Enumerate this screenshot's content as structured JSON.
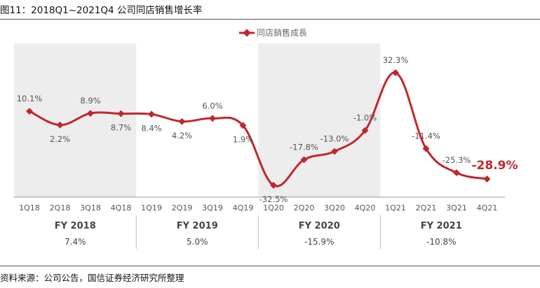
{
  "figure": {
    "title": "图11：2018Q1~2021Q4 公司同店销售增长率",
    "source": "资料来源：公司公告，国信证券经济研究所整理"
  },
  "colors": {
    "line": "#c0272d",
    "highlight_label": "#c0272d",
    "shade": "#ededed",
    "axis": "#999999",
    "text": "#555555",
    "fy_text": "#444444"
  },
  "chart_data": {
    "type": "line",
    "categories": [
      "1Q18",
      "2Q18",
      "3Q18",
      "4Q18",
      "1Q19",
      "2Q19",
      "3Q19",
      "4Q19",
      "1Q20",
      "2Q20",
      "3Q20",
      "4Q20",
      "1Q21",
      "2Q21",
      "3Q21",
      "4Q21"
    ],
    "series": [
      {
        "name": "同店銷售成長",
        "values": [
          10.1,
          2.2,
          8.9,
          8.7,
          8.4,
          4.2,
          6.0,
          1.9,
          -32.5,
          -17.8,
          -13.0,
          -1.0,
          32.3,
          -11.4,
          -25.3,
          -28.9
        ],
        "labels": [
          "10.1%",
          "2.2%",
          "8.9%",
          "8.7%",
          "8.4%",
          "4.2%",
          "6.0%",
          "1.9%",
          "-32.5%",
          "-17.8%",
          "-13.0%",
          "-1.0%",
          "32.3%",
          "-11.4%",
          "-25.3%",
          "-28.9%"
        ]
      }
    ],
    "legend_position": "top-center",
    "grid": false,
    "fiscal_years": [
      {
        "label": "FY 2018",
        "value": "7.4%"
      },
      {
        "label": "FY 2019",
        "value": "5.0%"
      },
      {
        "label": "FY 2020",
        "value": "-15.9%"
      },
      {
        "label": "FY 2021",
        "value": "-10.8%"
      }
    ],
    "shaded_years": [
      "FY 2018",
      "FY 2020"
    ],
    "highlighted_label": "-28.9%"
  }
}
